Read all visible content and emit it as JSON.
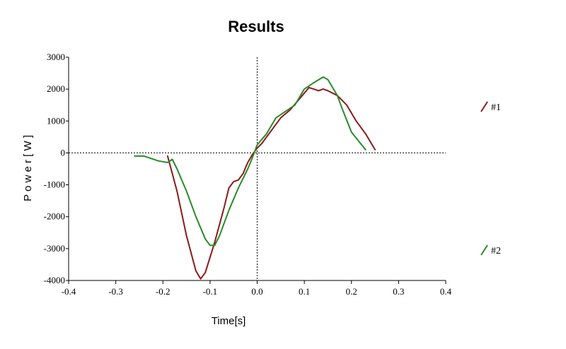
{
  "chart_data": {
    "type": "line",
    "title": "Results",
    "xlabel": "Time[s]",
    "ylabel": "P o w e r [ W ]",
    "xlim": [
      -0.4,
      0.4
    ],
    "ylim": [
      -4000,
      3000
    ],
    "xticks": [
      -0.4,
      -0.3,
      -0.2,
      -0.1,
      0.0,
      0.1,
      0.2,
      0.3,
      0.4
    ],
    "xtick_labels": [
      "-0.4",
      "-0.3",
      "-0.2",
      "-0.1",
      "0.0",
      "0.1",
      "0.2",
      "0.3",
      "0.4"
    ],
    "yticks": [
      3000,
      2000,
      1000,
      0,
      -1000,
      -2000,
      -3000,
      -4000
    ],
    "ytick_labels": [
      "3000",
      "2000",
      "1000",
      "0",
      "-1000",
      "-2000",
      "-3000",
      "-4000"
    ],
    "grid": false,
    "reference_lines": {
      "x": 0,
      "y": 0,
      "style": "dotted"
    },
    "legend_position": "right",
    "series": [
      {
        "name": "#1",
        "color": "#8b1a1a",
        "points": [
          [
            -0.19,
            -100
          ],
          [
            -0.17,
            -1200
          ],
          [
            -0.15,
            -2600
          ],
          [
            -0.13,
            -3700
          ],
          [
            -0.12,
            -3950
          ],
          [
            -0.11,
            -3750
          ],
          [
            -0.09,
            -2800
          ],
          [
            -0.07,
            -1700
          ],
          [
            -0.06,
            -1100
          ],
          [
            -0.05,
            -900
          ],
          [
            -0.04,
            -850
          ],
          [
            -0.03,
            -650
          ],
          [
            -0.02,
            -300
          ],
          [
            -0.01,
            -50
          ],
          [
            0.0,
            150
          ],
          [
            0.01,
            300
          ],
          [
            0.03,
            700
          ],
          [
            0.05,
            1100
          ],
          [
            0.07,
            1350
          ],
          [
            0.09,
            1700
          ],
          [
            0.11,
            2050
          ],
          [
            0.12,
            2000
          ],
          [
            0.13,
            1950
          ],
          [
            0.14,
            2000
          ],
          [
            0.15,
            1950
          ],
          [
            0.17,
            1800
          ],
          [
            0.19,
            1500
          ],
          [
            0.21,
            1000
          ],
          [
            0.23,
            600
          ],
          [
            0.25,
            100
          ]
        ]
      },
      {
        "name": "#2",
        "color": "#2a8a2a",
        "points": [
          [
            -0.26,
            -100
          ],
          [
            -0.24,
            -100
          ],
          [
            -0.23,
            -150
          ],
          [
            -0.21,
            -250
          ],
          [
            -0.19,
            -300
          ],
          [
            -0.18,
            -200
          ],
          [
            -0.17,
            -500
          ],
          [
            -0.15,
            -1200
          ],
          [
            -0.13,
            -2000
          ],
          [
            -0.11,
            -2700
          ],
          [
            -0.1,
            -2900
          ],
          [
            -0.09,
            -2900
          ],
          [
            -0.08,
            -2600
          ],
          [
            -0.06,
            -1800
          ],
          [
            -0.04,
            -1100
          ],
          [
            -0.02,
            -500
          ],
          [
            -0.01,
            -150
          ],
          [
            0.0,
            250
          ],
          [
            0.02,
            600
          ],
          [
            0.04,
            1100
          ],
          [
            0.06,
            1300
          ],
          [
            0.08,
            1500
          ],
          [
            0.1,
            2000
          ],
          [
            0.12,
            2200
          ],
          [
            0.14,
            2380
          ],
          [
            0.15,
            2300
          ],
          [
            0.17,
            1800
          ],
          [
            0.18,
            1400
          ],
          [
            0.2,
            650
          ],
          [
            0.23,
            100
          ]
        ]
      }
    ]
  }
}
